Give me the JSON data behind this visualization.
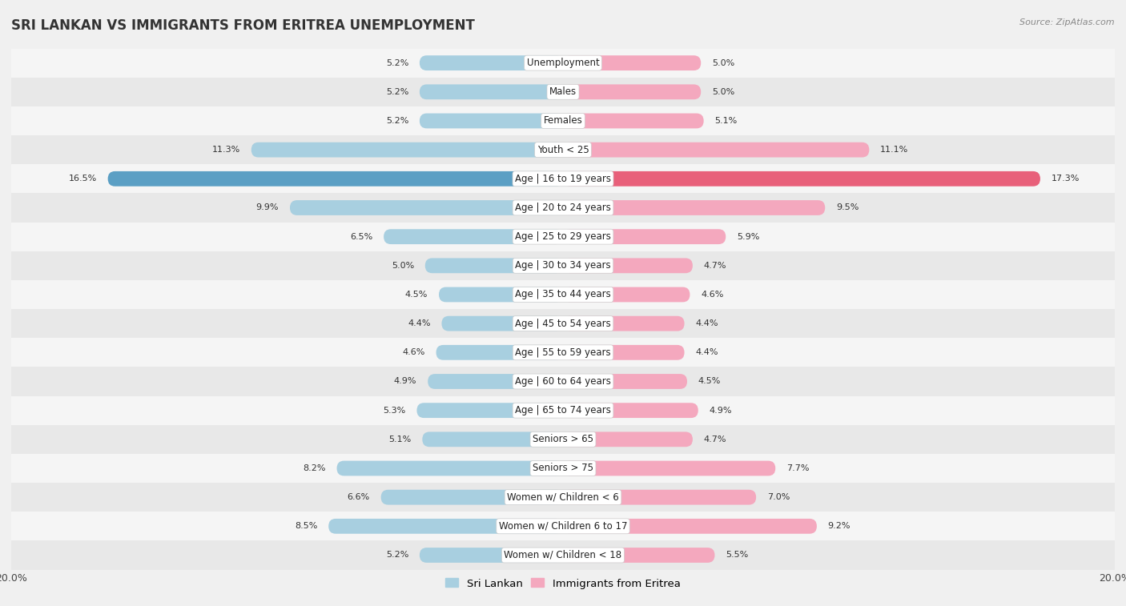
{
  "title": "SRI LANKAN VS IMMIGRANTS FROM ERITREA UNEMPLOYMENT",
  "source": "Source: ZipAtlas.com",
  "categories": [
    "Unemployment",
    "Males",
    "Females",
    "Youth < 25",
    "Age | 16 to 19 years",
    "Age | 20 to 24 years",
    "Age | 25 to 29 years",
    "Age | 30 to 34 years",
    "Age | 35 to 44 years",
    "Age | 45 to 54 years",
    "Age | 55 to 59 years",
    "Age | 60 to 64 years",
    "Age | 65 to 74 years",
    "Seniors > 65",
    "Seniors > 75",
    "Women w/ Children < 6",
    "Women w/ Children 6 to 17",
    "Women w/ Children < 18"
  ],
  "sri_lankan": [
    5.2,
    5.2,
    5.2,
    11.3,
    16.5,
    9.9,
    6.5,
    5.0,
    4.5,
    4.4,
    4.6,
    4.9,
    5.3,
    5.1,
    8.2,
    6.6,
    8.5,
    5.2
  ],
  "eritrea": [
    5.0,
    5.0,
    5.1,
    11.1,
    17.3,
    9.5,
    5.9,
    4.7,
    4.6,
    4.4,
    4.4,
    4.5,
    4.9,
    4.7,
    7.7,
    7.0,
    9.2,
    5.5
  ],
  "sri_lankan_color": "#a8cfe0",
  "eritrea_color": "#f4a8be",
  "sri_lankan_highlight_color": "#5b9fc4",
  "eritrea_highlight_color": "#e8607a",
  "row_color_odd": "#f5f5f5",
  "row_color_even": "#e8e8e8",
  "background_color": "#f0f0f0",
  "axis_limit": 20.0,
  "legend_sri_lankan": "Sri Lankan",
  "legend_eritrea": "Immigrants from Eritrea",
  "title_fontsize": 12,
  "label_fontsize": 8.5,
  "value_fontsize": 8.0
}
